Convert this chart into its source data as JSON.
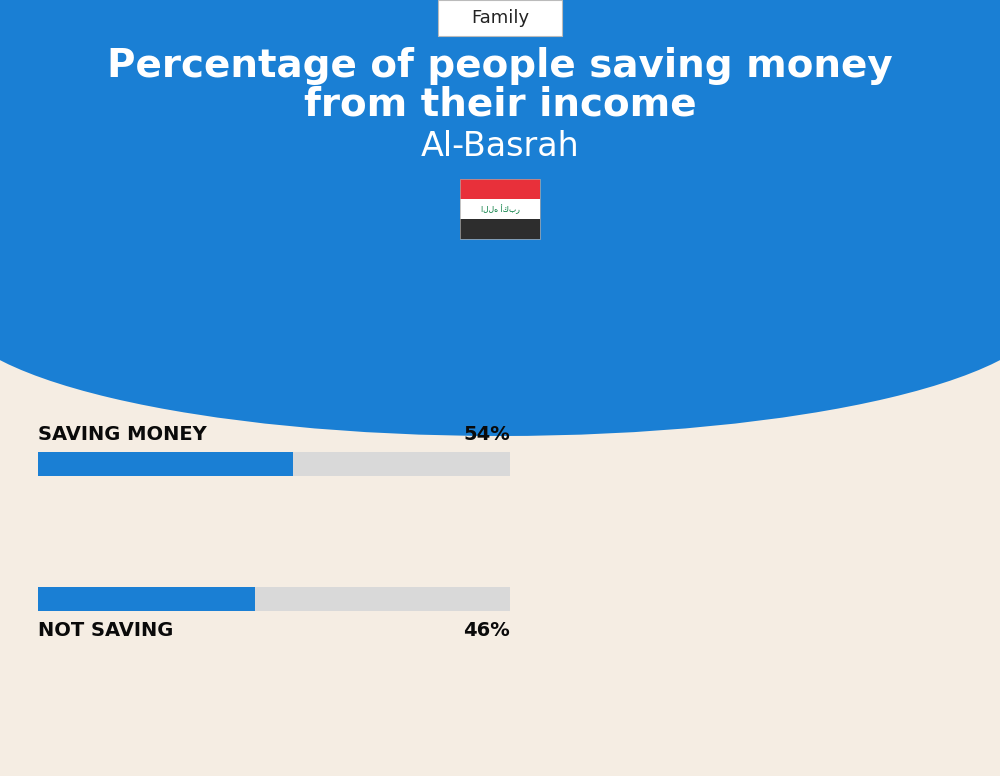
{
  "title_line1": "Percentage of people saving money",
  "title_line2": "from their income",
  "subtitle": "Al-Basrah",
  "category_label": "Family",
  "bg_top_color": "#1a7fd4",
  "bg_bottom_color": "#f5ede3",
  "bar1_label": "SAVING MONEY",
  "bar1_value": 54,
  "bar1_text": "54%",
  "bar2_label": "NOT SAVING",
  "bar2_value": 46,
  "bar2_text": "46%",
  "bar_fill_color": "#1a7fd4",
  "bar_bg_color": "#d9d9d9",
  "bar_max": 100,
  "title_color": "#ffffff",
  "subtitle_color": "#ffffff",
  "label_color": "#0a0a0a",
  "figwidth": 10.0,
  "figheight": 7.76,
  "flag_red": "#e8303a",
  "flag_white": "#ffffff",
  "flag_black": "#2d2d2d",
  "flag_green": "#007a3d"
}
